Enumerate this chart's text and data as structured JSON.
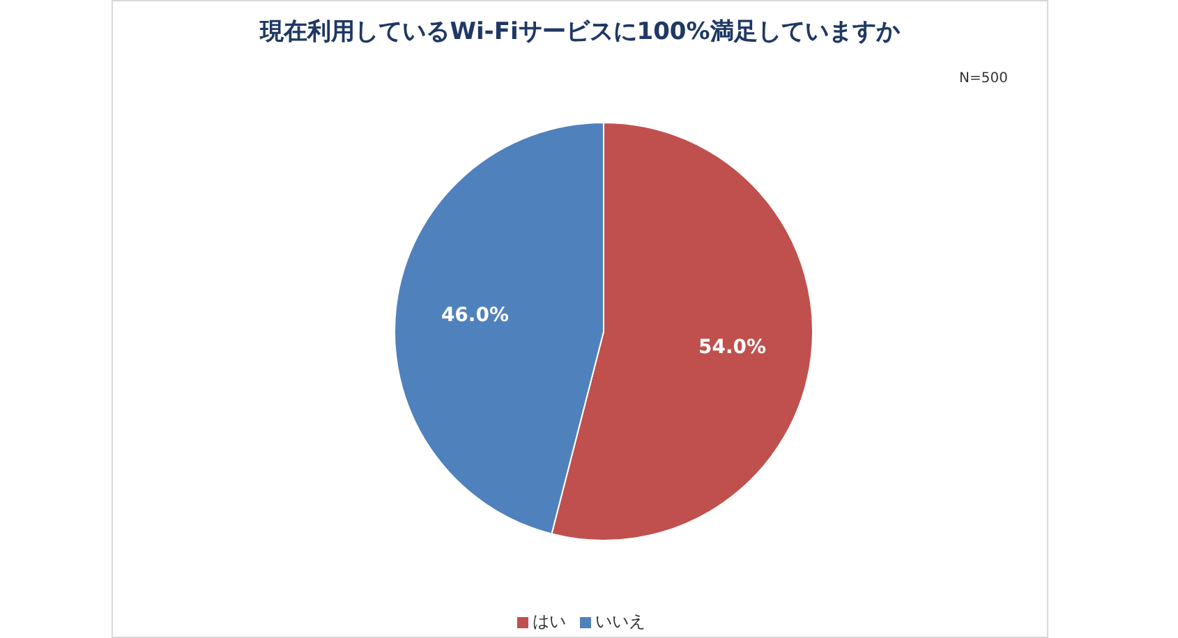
{
  "chart_data": {
    "type": "pie",
    "title": "現在利用しているWi-Fiサービスに100%満足していますか",
    "categories": [
      "はい",
      "いいえ"
    ],
    "values": [
      54.0,
      46.0
    ],
    "colors": [
      "#c0504d",
      "#4f81bd"
    ],
    "value_labels": [
      "54.0%",
      "46.0%"
    ],
    "legend": "bottom",
    "annotations": [
      "N=500"
    ]
  }
}
